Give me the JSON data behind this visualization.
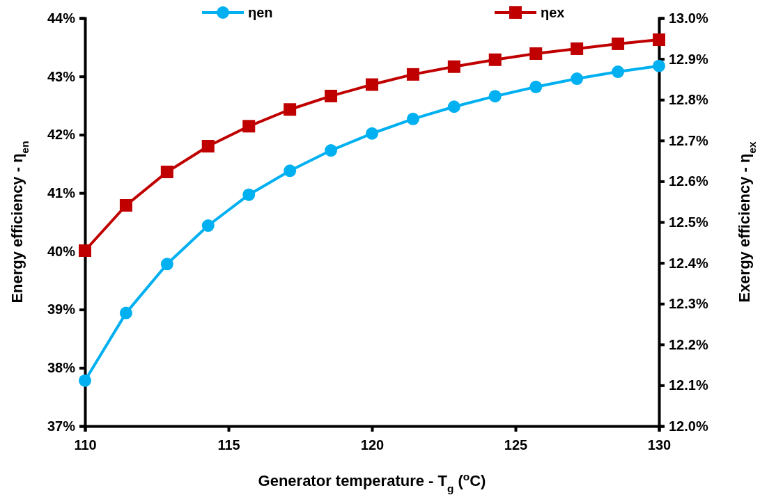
{
  "chart_data": {
    "type": "line",
    "xlabel": "Generator temperature - T$_{g}$ ($^{o}$C)",
    "ylabel": "Energy efficiency - η$_{en}$",
    "y2label": "Exergy efficiency - η$_{ex}$",
    "x": [
      110,
      111.43,
      112.86,
      114.29,
      115.71,
      117.14,
      118.57,
      120,
      121.43,
      122.86,
      124.29,
      125.71,
      127.14,
      128.57,
      130
    ],
    "series": [
      {
        "name": "ηen",
        "color": "#00b0f0",
        "marker": "circle",
        "values": [
          37.78,
          38.94,
          39.78,
          40.44,
          40.97,
          41.38,
          41.73,
          42.02,
          42.27,
          42.48,
          42.66,
          42.82,
          42.96,
          43.08,
          43.18
        ]
      },
      {
        "name": "ηex",
        "color": "#c00000",
        "marker": "square",
        "axis": "y2",
        "values": [
          12.43,
          12.541,
          12.623,
          12.686,
          12.735,
          12.776,
          12.809,
          12.837,
          12.862,
          12.881,
          12.898,
          12.913,
          12.925,
          12.937,
          12.947
        ]
      }
    ],
    "xlim": [
      110,
      130
    ],
    "xticks": [
      110,
      115,
      120,
      125,
      130
    ],
    "ylim": [
      37,
      44
    ],
    "yticks": [
      {
        "value": 37,
        "label": "37%"
      },
      {
        "value": 38,
        "label": "38%"
      },
      {
        "value": 39,
        "label": "39%"
      },
      {
        "value": 40,
        "label": "40%"
      },
      {
        "value": 41,
        "label": "41%"
      },
      {
        "value": 42,
        "label": "42%"
      },
      {
        "value": 43,
        "label": "43%"
      },
      {
        "value": 44,
        "label": "44%"
      }
    ],
    "y2lim": [
      12,
      13
    ],
    "y2ticks": [
      {
        "value": 12,
        "label": "12.0%"
      },
      {
        "value": 12.1,
        "label": "12.1%"
      },
      {
        "value": 12.2,
        "label": "12.2%"
      },
      {
        "value": 12.3,
        "label": "12.3%"
      },
      {
        "value": 12.4,
        "label": "12.4%"
      },
      {
        "value": 12.5,
        "label": "12.5%"
      },
      {
        "value": 12.6,
        "label": "12.6%"
      },
      {
        "value": 12.7,
        "label": "12.7%"
      },
      {
        "value": 12.8,
        "label": "12.8%"
      },
      {
        "value": 12.9,
        "label": "12.9%"
      },
      {
        "value": 13,
        "label": "13.0%"
      }
    ],
    "grid": false,
    "legend": "top",
    "line_style": "solid"
  }
}
